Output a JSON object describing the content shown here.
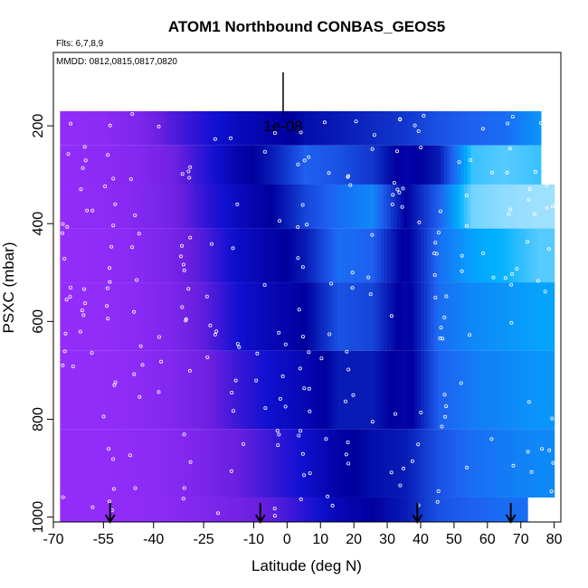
{
  "chart_data": {
    "type": "heatmap",
    "title": "ATOM1 Northbound CONBAS_GEOS5",
    "flights_note": "Flts: 6,7,8,9",
    "dates_note": "MMDD: 0812,0815,0817,0820",
    "xlabel": "Latitude (deg N)",
    "ylabel": "PSXC (mbar)",
    "xlim": [
      -70,
      82
    ],
    "ylim": [
      1010,
      50
    ],
    "x_ticks": [
      -70,
      -55,
      -40,
      -25,
      -10,
      0,
      10,
      20,
      30,
      40,
      50,
      60,
      70,
      80
    ],
    "y_ticks": [
      200,
      400,
      600,
      800,
      1000
    ],
    "scale_key_label": "1e-08",
    "colors": {
      "low": "#9b30ff",
      "mid_low": "#6a1fe0",
      "mid": "#0a0ac8",
      "deep": "#00009a",
      "high": "#1e90ff",
      "very_high": "#00bfff",
      "max": "#e0f4ff"
    },
    "arrow_latitudes": [
      -53,
      -8,
      39,
      67
    ],
    "field_rows": [
      {
        "p_top": 170,
        "p_bot": 240,
        "x_end": 76,
        "cols": [
          [
            -68,
            0.05
          ],
          [
            -55,
            0.08
          ],
          [
            -45,
            0.15
          ],
          [
            -35,
            0.3
          ],
          [
            -25,
            0.42
          ],
          [
            -15,
            0.5
          ],
          [
            -5,
            0.55
          ],
          [
            5,
            0.6
          ],
          [
            15,
            0.62
          ],
          [
            25,
            0.64
          ],
          [
            35,
            0.66
          ],
          [
            45,
            0.7
          ],
          [
            55,
            0.72
          ],
          [
            65,
            0.74
          ],
          [
            75,
            0.8
          ]
        ]
      },
      {
        "p_top": 240,
        "p_bot": 320,
        "x_end": 76,
        "cols": [
          [
            -68,
            0.05
          ],
          [
            -55,
            0.08
          ],
          [
            -45,
            0.12
          ],
          [
            -35,
            0.22
          ],
          [
            -25,
            0.4
          ],
          [
            -15,
            0.55
          ],
          [
            -5,
            0.62
          ],
          [
            5,
            0.72
          ],
          [
            15,
            0.7
          ],
          [
            25,
            0.66
          ],
          [
            35,
            0.55
          ],
          [
            45,
            0.62
          ],
          [
            55,
            0.88
          ],
          [
            65,
            0.9
          ],
          [
            75,
            0.88
          ]
        ]
      },
      {
        "p_top": 320,
        "p_bot": 410,
        "x_end": 80,
        "cols": [
          [
            -68,
            0.05
          ],
          [
            -55,
            0.07
          ],
          [
            -45,
            0.12
          ],
          [
            -35,
            0.2
          ],
          [
            -25,
            0.38
          ],
          [
            -15,
            0.5
          ],
          [
            -5,
            0.58
          ],
          [
            5,
            0.68
          ],
          [
            15,
            0.74
          ],
          [
            25,
            0.78
          ],
          [
            35,
            0.58
          ],
          [
            45,
            0.72
          ],
          [
            55,
            0.92
          ],
          [
            65,
            0.94
          ],
          [
            75,
            0.95
          ]
        ]
      },
      {
        "p_top": 410,
        "p_bot": 520,
        "x_end": 80,
        "cols": [
          [
            -68,
            0.04
          ],
          [
            -55,
            0.06
          ],
          [
            -45,
            0.1
          ],
          [
            -35,
            0.18
          ],
          [
            -25,
            0.32
          ],
          [
            -15,
            0.48
          ],
          [
            -5,
            0.55
          ],
          [
            5,
            0.62
          ],
          [
            15,
            0.74
          ],
          [
            25,
            0.72
          ],
          [
            35,
            0.56
          ],
          [
            45,
            0.74
          ],
          [
            55,
            0.82
          ],
          [
            65,
            0.85
          ],
          [
            75,
            0.9
          ]
        ]
      },
      {
        "p_top": 520,
        "p_bot": 660,
        "x_end": 80,
        "cols": [
          [
            -68,
            0.04
          ],
          [
            -55,
            0.05
          ],
          [
            -45,
            0.09
          ],
          [
            -35,
            0.15
          ],
          [
            -25,
            0.28
          ],
          [
            -15,
            0.45
          ],
          [
            -5,
            0.52
          ],
          [
            5,
            0.58
          ],
          [
            15,
            0.7
          ],
          [
            25,
            0.68
          ],
          [
            35,
            0.55
          ],
          [
            45,
            0.74
          ],
          [
            55,
            0.78
          ],
          [
            65,
            0.8
          ],
          [
            75,
            0.82
          ]
        ]
      },
      {
        "p_top": 660,
        "p_bot": 820,
        "x_end": 80,
        "cols": [
          [
            -68,
            0.04
          ],
          [
            -55,
            0.05
          ],
          [
            -45,
            0.08
          ],
          [
            -35,
            0.13
          ],
          [
            -25,
            0.22
          ],
          [
            -15,
            0.36
          ],
          [
            -5,
            0.46
          ],
          [
            5,
            0.52
          ],
          [
            15,
            0.62
          ],
          [
            25,
            0.62
          ],
          [
            35,
            0.55
          ],
          [
            45,
            0.72
          ],
          [
            55,
            0.76
          ],
          [
            65,
            0.78
          ],
          [
            75,
            0.8
          ]
        ]
      },
      {
        "p_top": 820,
        "p_bot": 960,
        "x_end": 80,
        "cols": [
          [
            -68,
            0.04
          ],
          [
            -55,
            0.05
          ],
          [
            -45,
            0.07
          ],
          [
            -35,
            0.1
          ],
          [
            -25,
            0.17
          ],
          [
            -15,
            0.26
          ],
          [
            -5,
            0.36
          ],
          [
            5,
            0.46
          ],
          [
            15,
            0.56
          ],
          [
            25,
            0.6
          ],
          [
            35,
            0.62
          ],
          [
            45,
            0.7
          ],
          [
            55,
            0.74
          ],
          [
            65,
            0.76
          ],
          [
            75,
            0.78
          ]
        ]
      },
      {
        "p_top": 960,
        "p_bot": 1010,
        "x_end": 72,
        "cols": [
          [
            -68,
            0.04
          ],
          [
            -55,
            0.05
          ],
          [
            -45,
            0.06
          ],
          [
            -35,
            0.09
          ],
          [
            -25,
            0.14
          ],
          [
            -15,
            0.2
          ],
          [
            -5,
            0.28
          ],
          [
            5,
            0.4
          ],
          [
            15,
            0.52
          ],
          [
            25,
            0.58
          ],
          [
            35,
            0.62
          ],
          [
            45,
            0.7
          ],
          [
            55,
            0.72
          ],
          [
            65,
            0.74
          ]
        ]
      }
    ]
  }
}
